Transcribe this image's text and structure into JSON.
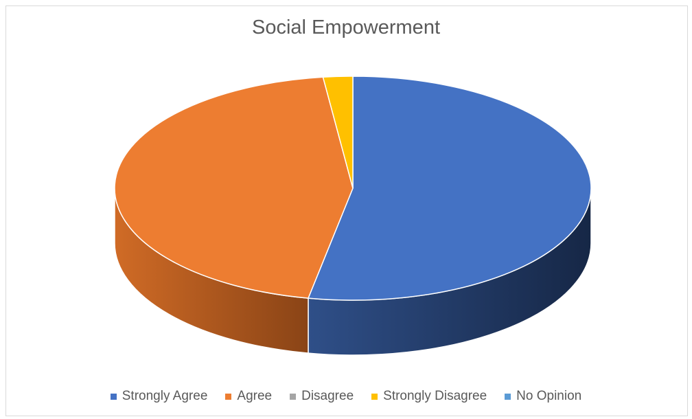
{
  "chart_data": {
    "type": "pie",
    "title": "Social Empowerment",
    "categories": [
      "Strongly Agree",
      "Agree",
      "Disagree",
      "Strongly Disagree",
      "No Opinion"
    ],
    "values": [
      53,
      45,
      0,
      2,
      0
    ],
    "colors": [
      "#4472C4",
      "#ED7D31",
      "#A5A5A5",
      "#FFC000",
      "#5B9BD5"
    ],
    "legend_position": "bottom",
    "style": "3d"
  }
}
